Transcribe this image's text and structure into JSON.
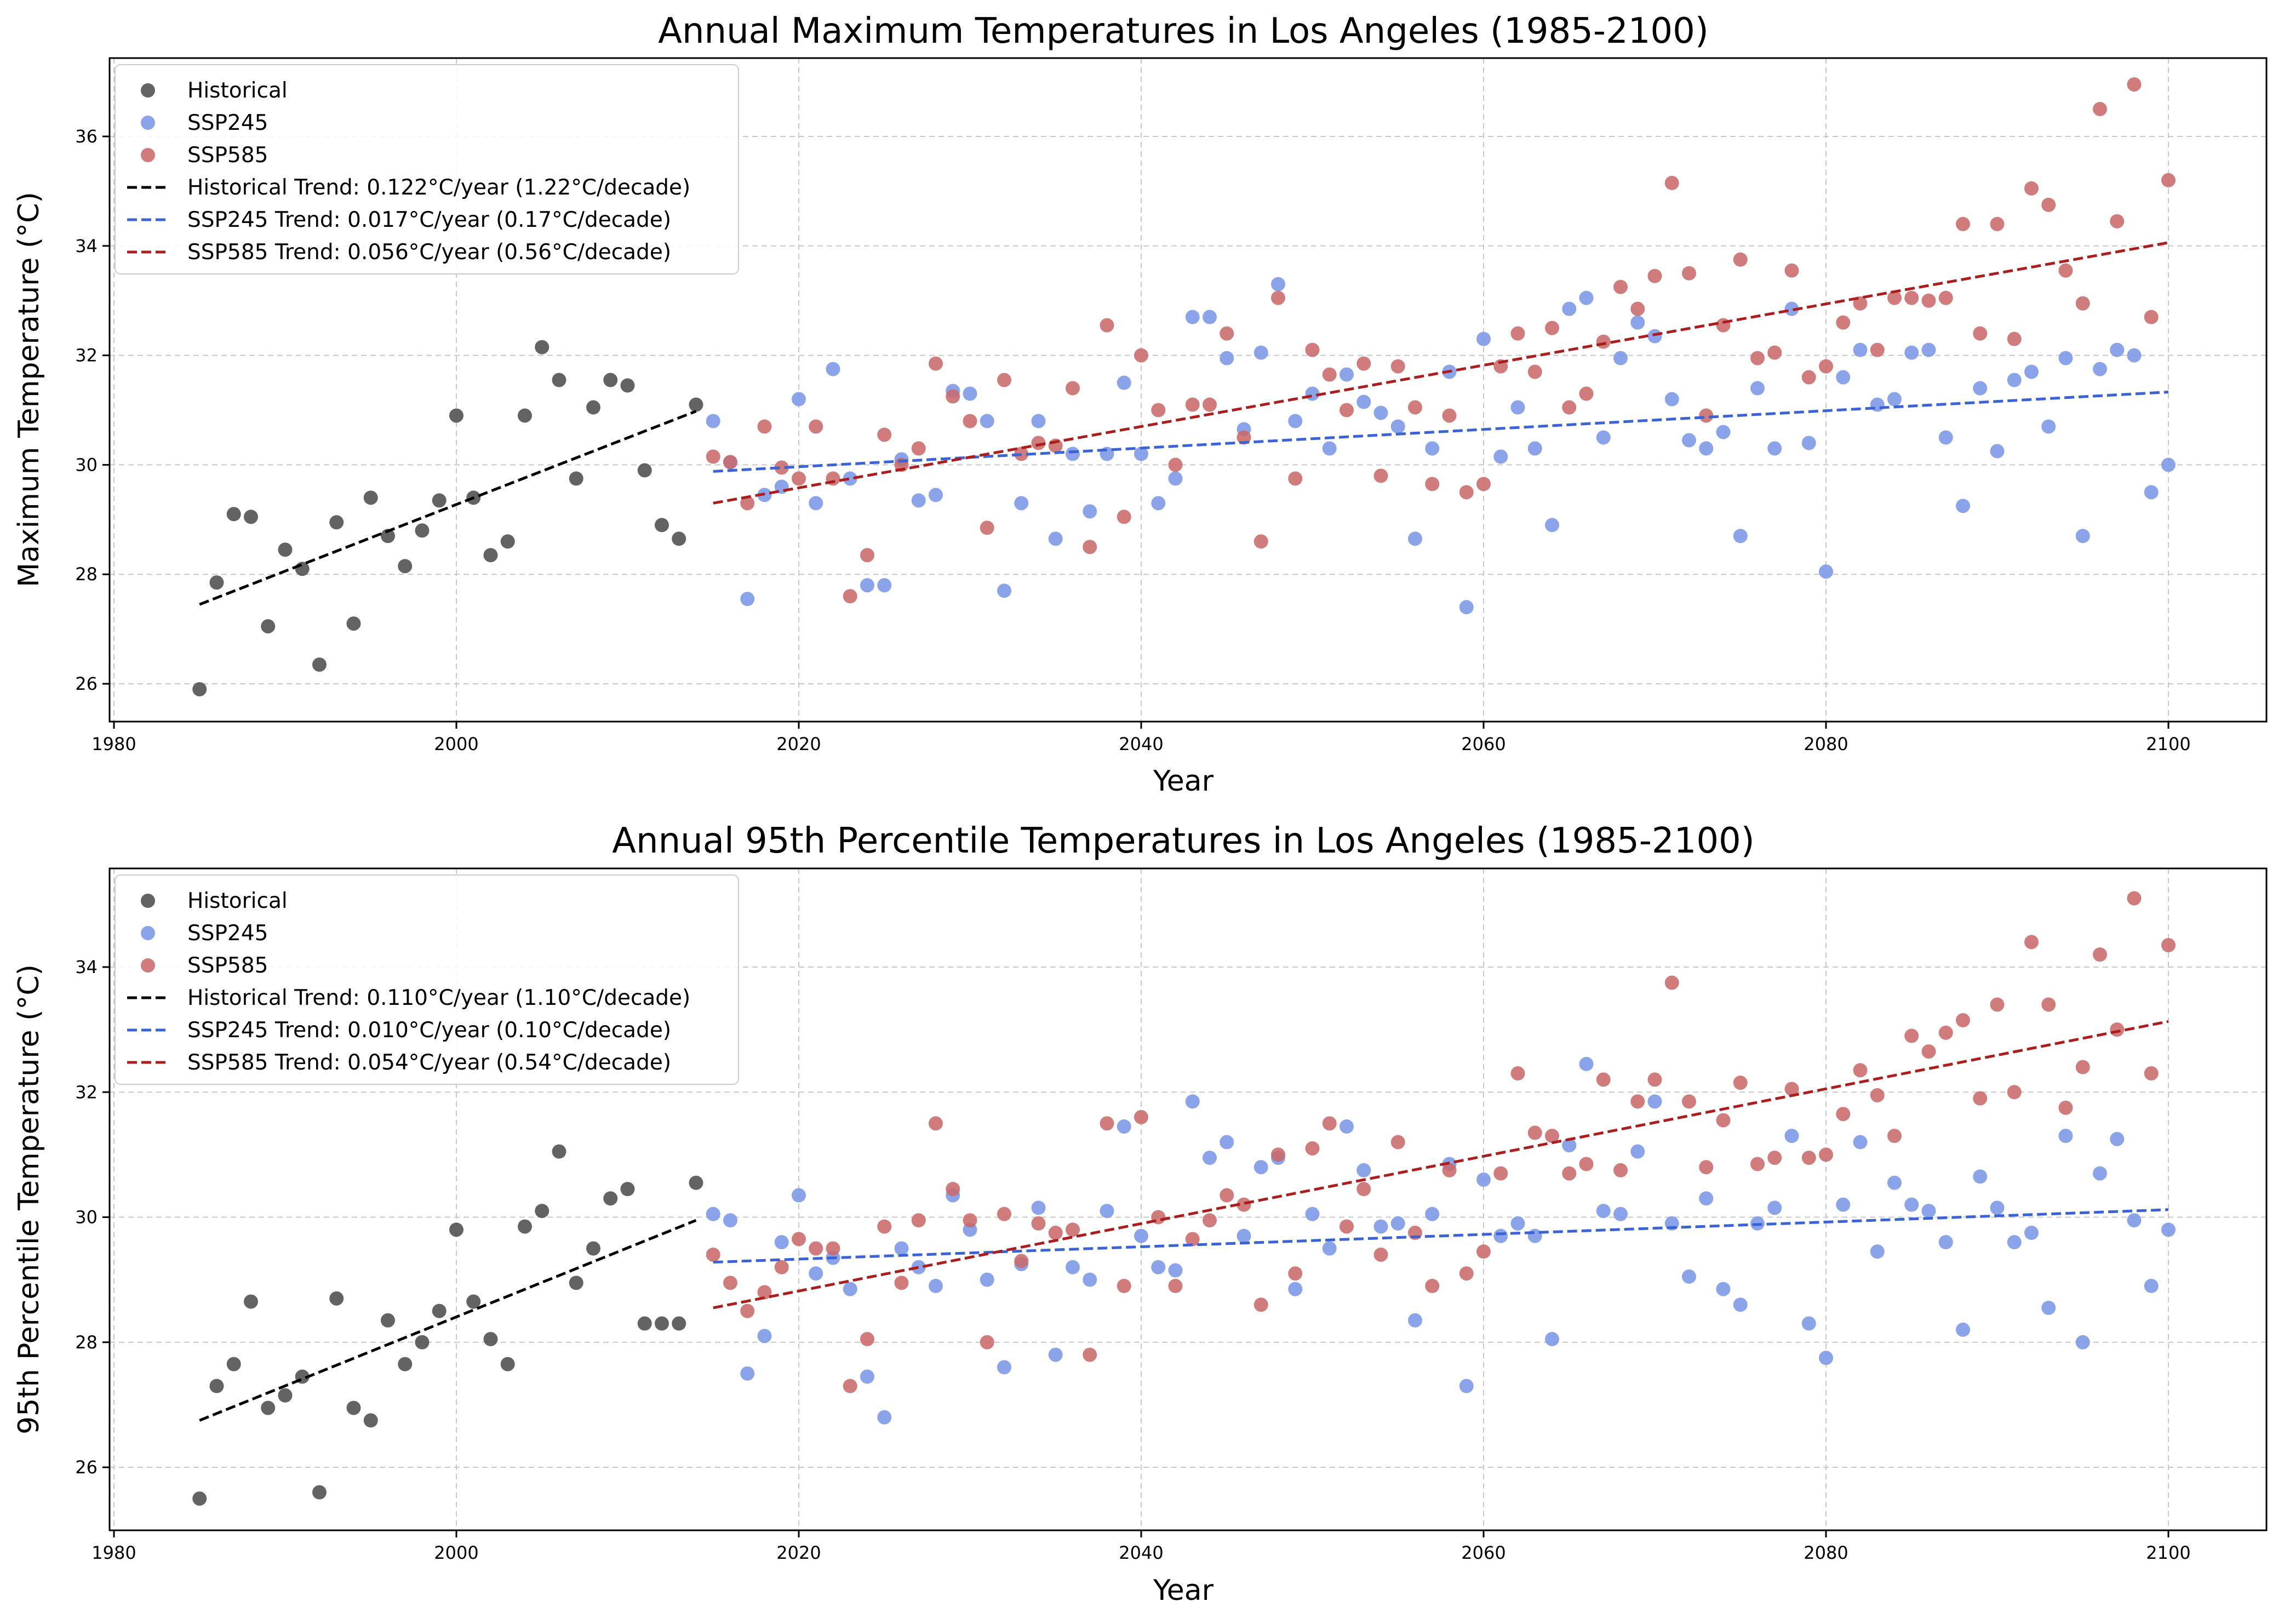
{
  "chart_data": [
    {
      "type": "scatter",
      "title": "Annual Maximum Temperatures in Los Angeles (1985-2100)",
      "xlabel": "Year",
      "ylabel": "Maximum Temperature (°C)",
      "xlim": [
        1985,
        2100
      ],
      "ylim": [
        25.3,
        37.4
      ],
      "xticks": [
        "1980",
        "2000",
        "2020",
        "2040",
        "2060",
        "2080",
        "2100"
      ],
      "yticks": [
        "26",
        "28",
        "30",
        "32",
        "34",
        "36"
      ],
      "grid": true,
      "legend_position": "top-left",
      "series": [
        {
          "name": "Historical",
          "kind": "scatter",
          "color": "#4d4d4d",
          "x": [
            1985,
            1986,
            1987,
            1988,
            1989,
            1990,
            1991,
            1992,
            1993,
            1994,
            1995,
            1996,
            1997,
            1998,
            1999,
            2000,
            2001,
            2002,
            2003,
            2004,
            2005,
            2006,
            2007,
            2008,
            2009,
            2010,
            2011,
            2012,
            2013,
            2014
          ],
          "y": [
            25.9,
            27.85,
            29.1,
            29.05,
            27.05,
            28.45,
            28.1,
            26.35,
            28.95,
            27.1,
            29.4,
            28.7,
            28.15,
            28.8,
            29.35,
            30.9,
            29.4,
            28.35,
            28.6,
            30.9,
            32.15,
            31.55,
            29.75,
            31.05,
            31.55,
            31.45,
            29.9,
            28.9,
            28.65,
            31.1
          ]
        },
        {
          "name": "SSP245",
          "kind": "scatter",
          "color": "#7b96e6",
          "x": [
            2015,
            2016,
            2017,
            2018,
            2019,
            2020,
            2021,
            2022,
            2023,
            2024,
            2025,
            2026,
            2027,
            2028,
            2029,
            2030,
            2031,
            2032,
            2033,
            2034,
            2035,
            2036,
            2037,
            2038,
            2039,
            2040,
            2041,
            2042,
            2043,
            2044,
            2045,
            2046,
            2047,
            2048,
            2049,
            2050,
            2051,
            2052,
            2053,
            2054,
            2055,
            2056,
            2057,
            2058,
            2059,
            2060,
            2061,
            2062,
            2063,
            2064,
            2065,
            2066,
            2067,
            2068,
            2069,
            2070,
            2071,
            2072,
            2073,
            2074,
            2075,
            2076,
            2077,
            2078,
            2079,
            2080,
            2081,
            2082,
            2083,
            2084,
            2085,
            2086,
            2087,
            2088,
            2089,
            2090,
            2091,
            2092,
            2093,
            2094,
            2095,
            2096,
            2097,
            2098,
            2099,
            2100
          ],
          "y": [
            30.8,
            30.05,
            27.55,
            29.45,
            29.6,
            31.2,
            29.3,
            31.75,
            29.75,
            27.8,
            27.8,
            30.1,
            29.35,
            29.45,
            31.35,
            31.3,
            30.8,
            27.7,
            29.3,
            30.8,
            28.65,
            30.2,
            29.15,
            30.2,
            31.5,
            30.2,
            29.3,
            29.75,
            32.7,
            32.7,
            31.95,
            30.65,
            32.05,
            33.3,
            30.8,
            31.3,
            30.3,
            31.65,
            31.15,
            30.95,
            30.7,
            28.65,
            30.3,
            31.7,
            27.4,
            32.3,
            30.15,
            31.05,
            30.3,
            28.9,
            32.85,
            33.05,
            30.5,
            31.95,
            32.6,
            32.35,
            31.2,
            30.45,
            30.3,
            30.6,
            28.7,
            31.4,
            30.3,
            32.85,
            30.4,
            28.05,
            31.6,
            32.1,
            31.1,
            31.2,
            32.05,
            32.1,
            30.5,
            29.25,
            31.4,
            30.25,
            31.55,
            31.7,
            30.7,
            31.95,
            28.7,
            31.75,
            32.1,
            32.0,
            29.5,
            30.0
          ]
        },
        {
          "name": "SSP585",
          "kind": "scatter",
          "color": "#c96a6a",
          "x": [
            2015,
            2016,
            2017,
            2018,
            2019,
            2020,
            2021,
            2022,
            2023,
            2024,
            2025,
            2026,
            2027,
            2028,
            2029,
            2030,
            2031,
            2032,
            2033,
            2034,
            2035,
            2036,
            2037,
            2038,
            2039,
            2040,
            2041,
            2042,
            2043,
            2044,
            2045,
            2046,
            2047,
            2048,
            2049,
            2050,
            2051,
            2052,
            2053,
            2054,
            2055,
            2056,
            2057,
            2058,
            2059,
            2060,
            2061,
            2062,
            2063,
            2064,
            2065,
            2066,
            2067,
            2068,
            2069,
            2070,
            2071,
            2072,
            2073,
            2074,
            2075,
            2076,
            2077,
            2078,
            2079,
            2080,
            2081,
            2082,
            2083,
            2084,
            2085,
            2086,
            2087,
            2088,
            2089,
            2090,
            2091,
            2092,
            2093,
            2094,
            2095,
            2096,
            2097,
            2098,
            2099,
            2100
          ],
          "y": [
            30.15,
            30.05,
            29.3,
            30.7,
            29.95,
            29.75,
            30.7,
            29.75,
            27.6,
            28.35,
            30.55,
            30.0,
            30.3,
            31.85,
            31.25,
            30.8,
            28.85,
            31.55,
            30.2,
            30.4,
            30.35,
            31.4,
            28.5,
            32.55,
            29.05,
            32.0,
            31.0,
            30.0,
            31.1,
            31.1,
            32.4,
            30.5,
            28.6,
            33.05,
            29.75,
            32.1,
            31.65,
            31.0,
            31.85,
            29.8,
            31.8,
            31.05,
            29.65,
            30.9,
            29.5,
            29.65,
            31.8,
            32.4,
            31.7,
            32.5,
            31.05,
            31.3,
            32.25,
            33.25,
            32.85,
            33.45,
            35.15,
            33.5,
            30.9,
            32.55,
            33.75,
            31.95,
            32.05,
            33.55,
            31.6,
            31.8,
            32.6,
            32.95,
            32.1,
            33.05,
            33.05,
            33.0,
            33.05,
            34.4,
            32.4,
            34.4,
            32.3,
            35.05,
            34.75,
            33.55,
            32.95,
            36.5,
            34.45,
            36.95,
            32.7,
            35.2
          ]
        },
        {
          "name": "Historical Trend: 0.122°C/year (1.22°C/decade)",
          "kind": "line",
          "color": "#000000",
          "x": [
            1985,
            2014
          ],
          "y": [
            27.45,
            30.98
          ]
        },
        {
          "name": "SSP245 Trend: 0.017°C/year (0.17°C/decade)",
          "kind": "line",
          "color": "#3b63d6",
          "x": [
            2015,
            2100
          ],
          "y": [
            29.88,
            31.33
          ]
        },
        {
          "name": "SSP585 Trend: 0.056°C/year (0.56°C/decade)",
          "kind": "line",
          "color": "#aa1e1e",
          "x": [
            2015,
            2100
          ],
          "y": [
            29.3,
            34.06
          ]
        }
      ]
    },
    {
      "type": "scatter",
      "title": "Annual 95th Percentile Temperatures in Los Angeles (1985-2100)",
      "xlabel": "Year",
      "ylabel": "95th Percentile Temperature (°C)",
      "xlim": [
        1985,
        2100
      ],
      "ylim": [
        25.0,
        35.6
      ],
      "xticks": [
        "1980",
        "2000",
        "2020",
        "2040",
        "2060",
        "2080",
        "2100"
      ],
      "yticks": [
        "26",
        "28",
        "30",
        "32",
        "34"
      ],
      "grid": true,
      "legend_position": "top-left",
      "series": [
        {
          "name": "Historical",
          "kind": "scatter",
          "color": "#4d4d4d",
          "x": [
            1985,
            1986,
            1987,
            1988,
            1989,
            1990,
            1991,
            1992,
            1993,
            1994,
            1995,
            1996,
            1997,
            1998,
            1999,
            2000,
            2001,
            2002,
            2003,
            2004,
            2005,
            2006,
            2007,
            2008,
            2009,
            2010,
            2011,
            2012,
            2013,
            2014
          ],
          "y": [
            25.5,
            27.3,
            27.65,
            28.65,
            26.95,
            27.15,
            27.45,
            25.6,
            28.7,
            26.95,
            26.75,
            28.35,
            27.65,
            28.0,
            28.5,
            29.8,
            28.65,
            28.05,
            27.65,
            29.85,
            30.1,
            31.05,
            28.95,
            29.5,
            30.3,
            30.45,
            28.3,
            28.3,
            28.3,
            30.55
          ]
        },
        {
          "name": "SSP245",
          "kind": "scatter",
          "color": "#7b96e6",
          "x": [
            2015,
            2016,
            2017,
            2018,
            2019,
            2020,
            2021,
            2022,
            2023,
            2024,
            2025,
            2026,
            2027,
            2028,
            2029,
            2030,
            2031,
            2032,
            2033,
            2034,
            2035,
            2036,
            2037,
            2038,
            2039,
            2040,
            2041,
            2042,
            2043,
            2044,
            2045,
            2046,
            2047,
            2048,
            2049,
            2050,
            2051,
            2052,
            2053,
            2054,
            2055,
            2056,
            2057,
            2058,
            2059,
            2060,
            2061,
            2062,
            2063,
            2064,
            2065,
            2066,
            2067,
            2068,
            2069,
            2070,
            2071,
            2072,
            2073,
            2074,
            2075,
            2076,
            2077,
            2078,
            2079,
            2080,
            2081,
            2082,
            2083,
            2084,
            2085,
            2086,
            2087,
            2088,
            2089,
            2090,
            2091,
            2092,
            2093,
            2094,
            2095,
            2096,
            2097,
            2098,
            2099,
            2100
          ],
          "y": [
            30.05,
            29.95,
            27.5,
            28.1,
            29.6,
            30.35,
            29.1,
            29.35,
            28.85,
            27.45,
            26.8,
            29.5,
            29.2,
            28.9,
            30.35,
            29.8,
            29.0,
            27.6,
            29.25,
            30.15,
            27.8,
            29.2,
            29.0,
            30.1,
            31.45,
            29.7,
            29.2,
            29.15,
            31.85,
            30.95,
            31.2,
            29.7,
            30.8,
            30.95,
            28.85,
            30.05,
            29.5,
            31.45,
            30.75,
            29.85,
            29.9,
            28.35,
            30.05,
            30.85,
            27.3,
            30.6,
            29.7,
            29.9,
            29.7,
            28.05,
            31.15,
            32.45,
            30.1,
            30.05,
            31.05,
            31.85,
            29.9,
            29.05,
            30.3,
            28.85,
            28.6,
            29.9,
            30.15,
            31.3,
            28.3,
            27.75,
            30.2,
            31.2,
            29.45,
            30.55,
            30.2,
            30.1,
            29.6,
            28.2,
            30.65,
            30.15,
            29.6,
            29.75,
            28.55,
            31.3,
            28.0,
            30.7,
            31.25,
            29.95,
            28.9,
            29.8
          ]
        },
        {
          "name": "SSP585",
          "kind": "scatter",
          "color": "#c96a6a",
          "x": [
            2015,
            2016,
            2017,
            2018,
            2019,
            2020,
            2021,
            2022,
            2023,
            2024,
            2025,
            2026,
            2027,
            2028,
            2029,
            2030,
            2031,
            2032,
            2033,
            2034,
            2035,
            2036,
            2037,
            2038,
            2039,
            2040,
            2041,
            2042,
            2043,
            2044,
            2045,
            2046,
            2047,
            2048,
            2049,
            2050,
            2051,
            2052,
            2053,
            2054,
            2055,
            2056,
            2057,
            2058,
            2059,
            2060,
            2061,
            2062,
            2063,
            2064,
            2065,
            2066,
            2067,
            2068,
            2069,
            2070,
            2071,
            2072,
            2073,
            2074,
            2075,
            2076,
            2077,
            2078,
            2079,
            2080,
            2081,
            2082,
            2083,
            2084,
            2085,
            2086,
            2087,
            2088,
            2089,
            2090,
            2091,
            2092,
            2093,
            2094,
            2095,
            2096,
            2097,
            2098,
            2099,
            2100
          ],
          "y": [
            29.4,
            28.95,
            28.5,
            28.8,
            29.2,
            29.65,
            29.5,
            29.5,
            27.3,
            28.05,
            29.85,
            28.95,
            29.95,
            31.5,
            30.45,
            29.95,
            28.0,
            30.05,
            29.3,
            29.9,
            29.75,
            29.8,
            27.8,
            31.5,
            28.9,
            31.6,
            30.0,
            28.9,
            29.65,
            29.95,
            30.35,
            30.2,
            28.6,
            31.0,
            29.1,
            31.1,
            31.5,
            29.85,
            30.45,
            29.4,
            31.2,
            29.75,
            28.9,
            30.75,
            29.1,
            29.45,
            30.7,
            32.3,
            31.35,
            31.3,
            30.7,
            30.85,
            32.2,
            30.75,
            31.85,
            32.2,
            33.75,
            31.85,
            30.8,
            31.55,
            32.15,
            30.85,
            30.95,
            32.05,
            30.95,
            31.0,
            31.65,
            32.35,
            31.95,
            31.3,
            32.9,
            32.65,
            32.95,
            33.15,
            31.9,
            33.4,
            32.0,
            34.4,
            33.4,
            31.75,
            32.4,
            34.2,
            33.0,
            35.1,
            32.3,
            34.35
          ]
        },
        {
          "name": "Historical Trend: 0.110°C/year (1.10°C/decade)",
          "kind": "line",
          "color": "#000000",
          "x": [
            1985,
            2014
          ],
          "y": [
            26.75,
            29.95
          ]
        },
        {
          "name": "SSP245 Trend: 0.010°C/year (0.10°C/decade)",
          "kind": "line",
          "color": "#3b63d6",
          "x": [
            2015,
            2100
          ],
          "y": [
            29.28,
            30.12
          ]
        },
        {
          "name": "SSP585 Trend: 0.054°C/year (0.54°C/decade)",
          "kind": "line",
          "color": "#aa1e1e",
          "x": [
            2015,
            2100
          ],
          "y": [
            28.55,
            33.13
          ]
        }
      ]
    }
  ]
}
